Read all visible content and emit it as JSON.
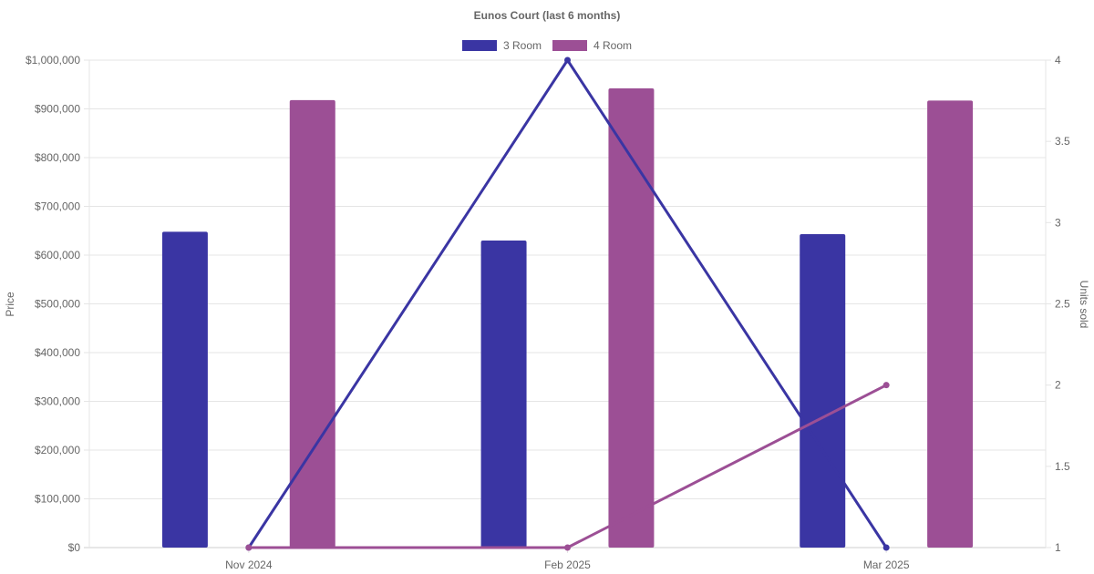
{
  "chart_data": {
    "type": "bar",
    "title": "Eunos Court (last 6 months)",
    "categories": [
      "Nov 2024",
      "Feb 2025",
      "Mar 2025"
    ],
    "series": [
      {
        "name": "3 Room",
        "type": "bar",
        "axis": "left",
        "color": "#3a35a3",
        "values": [
          648000,
          630000,
          643000
        ]
      },
      {
        "name": "4 Room",
        "type": "bar",
        "axis": "left",
        "color": "#9c4f95",
        "values": [
          918000,
          942000,
          917000
        ]
      },
      {
        "name": "3 Room",
        "type": "line",
        "axis": "right",
        "color": "#3a35a3",
        "values": [
          1,
          4,
          1
        ]
      },
      {
        "name": "4 Room",
        "type": "line",
        "axis": "right",
        "color": "#9c4f95",
        "values": [
          1,
          1,
          2
        ]
      }
    ],
    "legend": [
      {
        "name": "3 Room",
        "color": "#3a35a3"
      },
      {
        "name": "4 Room",
        "color": "#9c4f95"
      }
    ],
    "legend_position": "top",
    "y_left": {
      "label": "Price",
      "range": [
        0,
        1000000
      ],
      "ticks": [
        "$0",
        "$100,000",
        "$200,000",
        "$300,000",
        "$400,000",
        "$500,000",
        "$600,000",
        "$700,000",
        "$800,000",
        "$900,000",
        "$1,000,000"
      ]
    },
    "y_right": {
      "label": "Units sold",
      "range": [
        1,
        4
      ],
      "ticks": [
        "1",
        "1.5",
        "2",
        "2.5",
        "3",
        "3.5",
        "4"
      ]
    },
    "grid": true
  }
}
